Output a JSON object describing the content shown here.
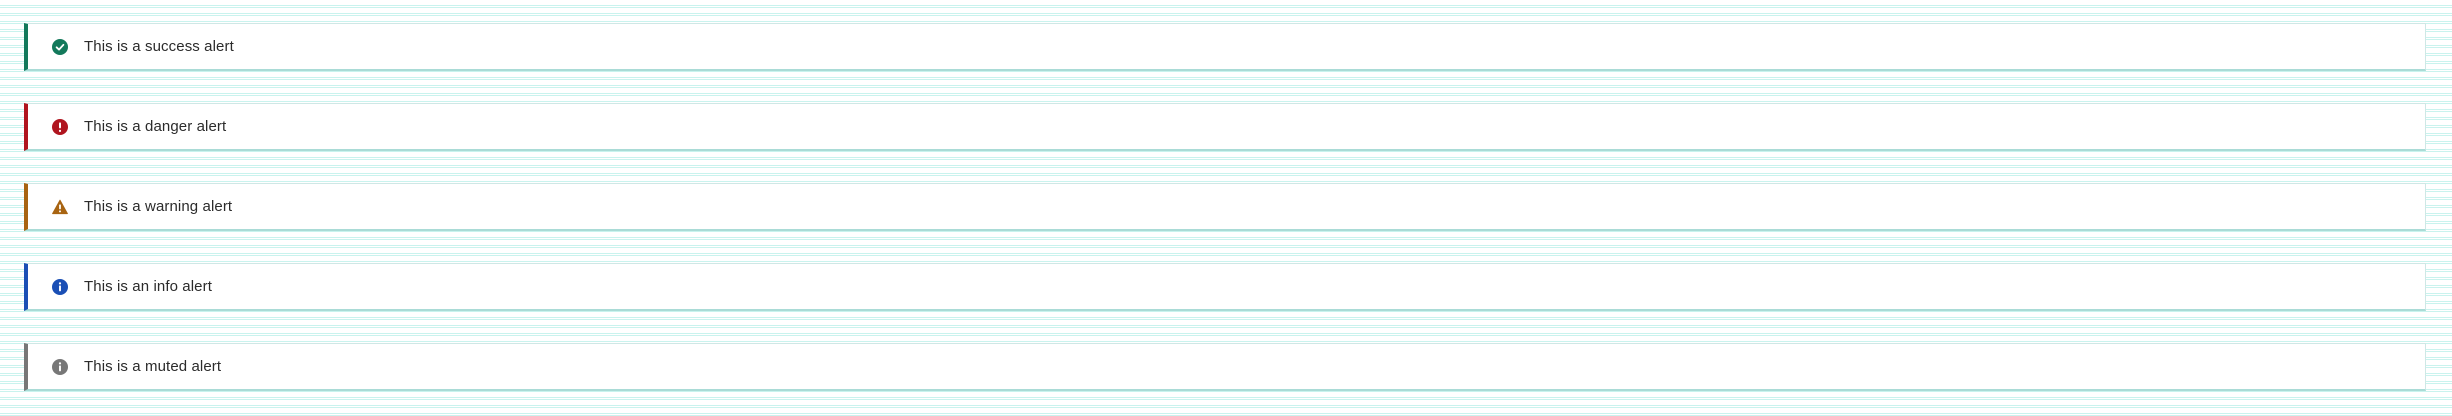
{
  "alerts": {
    "success": {
      "text": "This is a success alert",
      "icon": "check-circle-icon",
      "color": "#13795b"
    },
    "danger": {
      "text": "This is a danger alert",
      "icon": "exclamation-circle-icon",
      "color": "#b0151f"
    },
    "warning": {
      "text": "This is a warning alert",
      "icon": "warning-triangle-icon",
      "color": "#a86412"
    },
    "info": {
      "text": "This is an info alert",
      "icon": "info-circle-icon",
      "color": "#1a4fb5"
    },
    "muted": {
      "text": "This is a muted alert",
      "icon": "info-circle-icon",
      "color": "#777777"
    }
  }
}
